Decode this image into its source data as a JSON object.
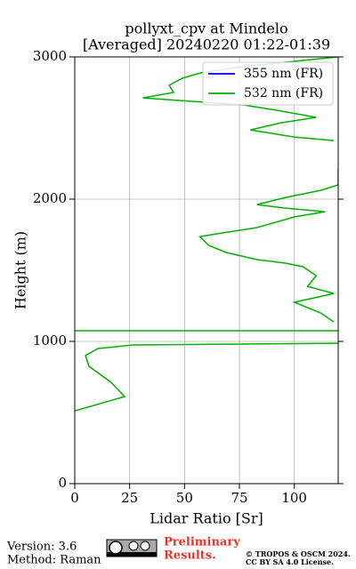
{
  "chart_data": {
    "type": "line",
    "title": "pollyxt_cpv at Mindelo",
    "subtitle": "[Averaged] 20240220 01:22-01:39",
    "x_label": "Lidar Ratio [Sr]",
    "y_label": "Height (m)",
    "xlim": [
      0,
      120
    ],
    "ylim": [
      0,
      3000
    ],
    "xticks": [
      0,
      25,
      50,
      75,
      100
    ],
    "yticks": [
      0,
      1000,
      2000,
      3000
    ],
    "grid": true,
    "legend": "upper right",
    "series": [
      {
        "name": "355 nm (FR)",
        "color": "#0000ff",
        "x": [],
        "y": []
      },
      {
        "name": "532 nm (FR)",
        "color": "#00b000",
        "x": [
          0,
          22.7,
          16.6,
          6.5,
          4.9,
          10.5,
          26.8,
          120,
          null,
          0,
          120,
          null,
          118,
          112,
          100,
          118,
          106,
          110,
          104,
          96,
          83,
          69,
          61,
          57,
          67,
          83,
          100,
          114,
          96,
          83,
          96,
          112,
          120,
          120,
          null,
          118,
          100,
          80,
          94,
          110,
          92,
          77,
          31,
          45,
          43,
          49,
          57,
          79,
          120
        ],
        "y": [
          512,
          612,
          712,
          825,
          900,
          950,
          975,
          987,
          null,
          1075,
          1075,
          null,
          1137,
          1200,
          1275,
          1337,
          1387,
          1462,
          1525,
          1550,
          1575,
          1625,
          1675,
          1737,
          1762,
          1800,
          1875,
          1912,
          1937,
          1962,
          2012,
          2062,
          2100,
          2212,
          null,
          2412,
          2437,
          2487,
          2537,
          2575,
          2625,
          2662,
          2712,
          2750,
          2800,
          2850,
          2887,
          2937,
          3000
        ]
      }
    ]
  },
  "footer": {
    "version": "Version: 3.6",
    "method": "Method: Raman",
    "preliminary": "Preliminary",
    "results": "Results.",
    "copyright": "© TROPOS & OSCM 2024.",
    "license": "CC BY SA 4.0 License."
  }
}
